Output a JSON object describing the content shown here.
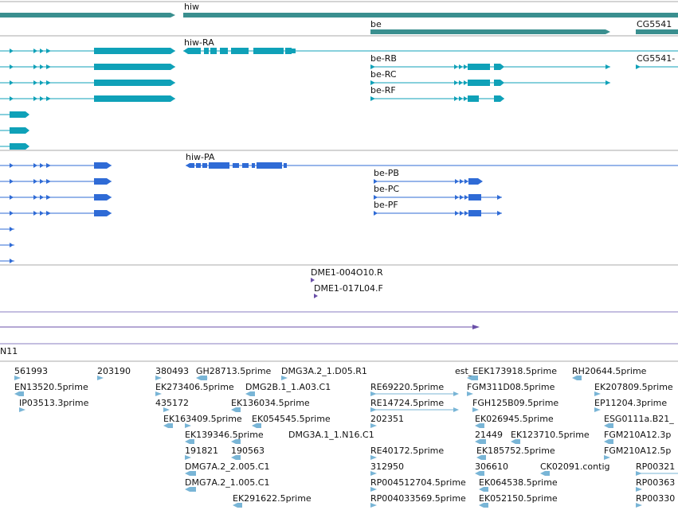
{
  "colors": {
    "gene": "#3a8f8f",
    "transcript_teal": "#0fa1b8",
    "transcript_blue": "#2f6bd6",
    "clone": "#6a4fa8",
    "est": "#79b5d6",
    "divider": "#a8a8a8",
    "divider_purple": "#8a7cc0"
  },
  "track_gene": {
    "labels": [
      {
        "id": "hiw",
        "text": "hiw"
      },
      {
        "id": "be",
        "text": "be"
      },
      {
        "id": "cg5541",
        "text": "CG5541"
      }
    ]
  },
  "track_transcripts_a": {
    "labels": [
      {
        "id": "hiw-ra",
        "text": "hiw-RA"
      },
      {
        "id": "be-rb",
        "text": "be-RB"
      },
      {
        "id": "be-rc",
        "text": "be-RC"
      },
      {
        "id": "be-rf",
        "text": "be-RF"
      },
      {
        "id": "cg5541-r",
        "text": "CG5541-"
      }
    ]
  },
  "track_transcripts_b": {
    "labels": [
      {
        "id": "hiw-pa",
        "text": "hiw-PA"
      },
      {
        "id": "be-pb",
        "text": "be-PB"
      },
      {
        "id": "be-pc",
        "text": "be-PC"
      },
      {
        "id": "be-pf",
        "text": "be-PF"
      }
    ]
  },
  "track_clones": {
    "labels": [
      {
        "id": "dme1-004o10",
        "text": "DME1-004O10.R"
      },
      {
        "id": "dme1-017l04",
        "text": "DME1-017L04.F"
      }
    ]
  },
  "track_n11": {
    "label": "N11"
  },
  "track_est": {
    "labels": [
      {
        "id": "e1",
        "text": "561993"
      },
      {
        "id": "e2",
        "text": "203190"
      },
      {
        "id": "e3",
        "text": "380493"
      },
      {
        "id": "e4",
        "text": "GH28713.5prime"
      },
      {
        "id": "e5",
        "text": "DMG3A.2_1.D05.R1"
      },
      {
        "id": "e6",
        "text": "est_EEK173918.5prime"
      },
      {
        "id": "e7",
        "text": "RH20644.5prime"
      },
      {
        "id": "e8",
        "text": "EN13520.5prime"
      },
      {
        "id": "e9",
        "text": "EK273406.5prime"
      },
      {
        "id": "e10",
        "text": "DMG2B.1_1.A03.C1"
      },
      {
        "id": "e11",
        "text": "RE69220.5prime"
      },
      {
        "id": "e12",
        "text": "FGM311D08.5prime"
      },
      {
        "id": "e13",
        "text": "EK207809.5prime"
      },
      {
        "id": "e14",
        "text": "IP03513.3prime"
      },
      {
        "id": "e15",
        "text": "435172"
      },
      {
        "id": "e16",
        "text": "EK136034.5prime"
      },
      {
        "id": "e17",
        "text": "RE14724.5prime"
      },
      {
        "id": "e18",
        "text": "FGH125B09.5prime"
      },
      {
        "id": "e19",
        "text": "EP11204.3prime"
      },
      {
        "id": "e20",
        "text": "EK163409.5prime"
      },
      {
        "id": "e21",
        "text": "EK054545.5prime"
      },
      {
        "id": "e22",
        "text": "202351"
      },
      {
        "id": "e23",
        "text": "EK026945.5prime"
      },
      {
        "id": "e24",
        "text": "ESG0111a.B21_"
      },
      {
        "id": "e25",
        "text": "EK139346.5prime"
      },
      {
        "id": "e26",
        "text": "DMG3A.1_1.N16.C1"
      },
      {
        "id": "e27",
        "text": "21449"
      },
      {
        "id": "e28",
        "text": "EK123710.5prime"
      },
      {
        "id": "e29",
        "text": "FGM210A12.3p"
      },
      {
        "id": "e30",
        "text": "191821"
      },
      {
        "id": "e31",
        "text": "190563"
      },
      {
        "id": "e32",
        "text": "RE40172.5prime"
      },
      {
        "id": "e33",
        "text": "EK185752.5prime"
      },
      {
        "id": "e34",
        "text": "FGM210A12.5p"
      },
      {
        "id": "e35",
        "text": "DMG7A.2_2.005.C1"
      },
      {
        "id": "e36",
        "text": "312950"
      },
      {
        "id": "e37",
        "text": "306610"
      },
      {
        "id": "e38",
        "text": "CK02091.contig"
      },
      {
        "id": "e39",
        "text": "RP00321"
      },
      {
        "id": "e40",
        "text": "DMG7A.2_1.005.C1"
      },
      {
        "id": "e41",
        "text": "RP004512704.5prime"
      },
      {
        "id": "e42",
        "text": "EK064538.5prime"
      },
      {
        "id": "e43",
        "text": "RP00363"
      },
      {
        "id": "e44",
        "text": "EK291622.5prime"
      },
      {
        "id": "e45",
        "text": "RP004033569.5prime"
      },
      {
        "id": "e46",
        "text": "EK052150.5prime"
      },
      {
        "id": "e47",
        "text": "RP00330"
      }
    ]
  }
}
